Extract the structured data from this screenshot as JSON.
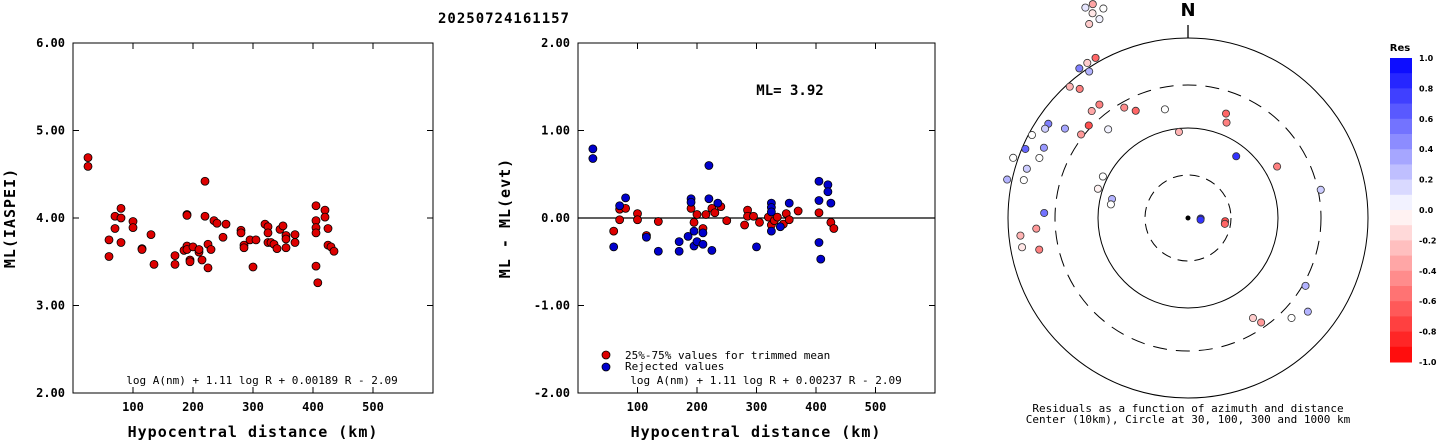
{
  "title": "20250724161157",
  "charts": {
    "left": {
      "type": "scatter",
      "xlabel": "Hypocentral distance (km)",
      "ylabel": "ML(IASPEI)",
      "xlim": [
        0,
        600
      ],
      "ylim": [
        2.0,
        6.0
      ],
      "xticks": [
        "100",
        "200",
        "300",
        "400",
        "500"
      ],
      "yticks": [
        "2.00",
        "3.00",
        "4.00",
        "5.00",
        "6.00"
      ],
      "formula": "log A(nm) + 1.11 log R + 0.00189 R - 2.09",
      "point_color": "#dd0000",
      "points": [
        [
          25,
          4.69
        ],
        [
          25,
          4.59
        ],
        [
          60,
          3.75
        ],
        [
          60,
          3.56
        ],
        [
          70,
          4.02
        ],
        [
          70,
          3.88
        ],
        [
          80,
          4.11
        ],
        [
          80,
          4.0
        ],
        [
          80,
          3.72
        ],
        [
          100,
          3.96
        ],
        [
          100,
          3.89
        ],
        [
          115,
          3.65
        ],
        [
          115,
          3.64
        ],
        [
          130,
          3.81
        ],
        [
          135,
          3.47
        ],
        [
          170,
          3.57
        ],
        [
          170,
          3.47
        ],
        [
          185,
          3.63
        ],
        [
          190,
          4.04
        ],
        [
          190,
          4.03
        ],
        [
          190,
          3.68
        ],
        [
          190,
          3.64
        ],
        [
          195,
          3.52
        ],
        [
          195,
          3.5
        ],
        [
          200,
          3.67
        ],
        [
          210,
          3.61
        ],
        [
          210,
          3.64
        ],
        [
          215,
          3.52
        ],
        [
          220,
          4.42
        ],
        [
          220,
          4.02
        ],
        [
          225,
          3.43
        ],
        [
          225,
          3.7
        ],
        [
          230,
          3.64
        ],
        [
          235,
          3.97
        ],
        [
          240,
          3.94
        ],
        [
          250,
          3.78
        ],
        [
          255,
          3.93
        ],
        [
          280,
          3.86
        ],
        [
          280,
          3.83
        ],
        [
          285,
          3.69
        ],
        [
          285,
          3.66
        ],
        [
          295,
          3.75
        ],
        [
          300,
          3.44
        ],
        [
          305,
          3.75
        ],
        [
          320,
          3.93
        ],
        [
          325,
          3.9
        ],
        [
          325,
          3.83
        ],
        [
          325,
          3.72
        ],
        [
          330,
          3.72
        ],
        [
          335,
          3.7
        ],
        [
          340,
          3.65
        ],
        [
          345,
          3.87
        ],
        [
          350,
          3.91
        ],
        [
          355,
          3.8
        ],
        [
          355,
          3.76
        ],
        [
          355,
          3.66
        ],
        [
          370,
          3.81
        ],
        [
          370,
          3.72
        ],
        [
          405,
          4.14
        ],
        [
          405,
          3.97
        ],
        [
          405,
          3.89
        ],
        [
          405,
          3.83
        ],
        [
          405,
          3.45
        ],
        [
          408,
          3.26
        ],
        [
          420,
          4.09
        ],
        [
          420,
          4.01
        ],
        [
          425,
          3.88
        ],
        [
          425,
          3.69
        ],
        [
          430,
          3.67
        ],
        [
          435,
          3.62
        ]
      ]
    },
    "middle": {
      "type": "scatter",
      "xlabel": "Hypocentral distance (km)",
      "ylabel": "ML - ML(evt)",
      "xlim": [
        0,
        600
      ],
      "ylim": [
        -2.0,
        2.0
      ],
      "xticks": [
        "100",
        "200",
        "300",
        "400",
        "500"
      ],
      "yticks": [
        "-2.00",
        "-1.00",
        "0.00",
        "1.00",
        "2.00"
      ],
      "ml_label": "ML= 3.92",
      "legend_trimmed": "25%-75% values for trimmed mean",
      "legend_rejected": "Rejected values",
      "formula": "log A(nm) + 1.11 log R + 0.00237 R - 2.09",
      "series": [
        {
          "color": "#dd0000",
          "points": [
            [
              60,
              -0.15
            ],
            [
              70,
              0.1
            ],
            [
              70,
              -0.02
            ],
            [
              80,
              0.11
            ],
            [
              100,
              0.05
            ],
            [
              100,
              -0.02
            ],
            [
              115,
              -0.2
            ],
            [
              135,
              -0.04
            ],
            [
              190,
              0.11
            ],
            [
              195,
              -0.05
            ],
            [
              200,
              0.04
            ],
            [
              210,
              -0.12
            ],
            [
              215,
              0.04
            ],
            [
              225,
              0.11
            ],
            [
              230,
              0.06
            ],
            [
              240,
              0.13
            ],
            [
              250,
              -0.03
            ],
            [
              280,
              -0.08
            ],
            [
              285,
              0.09
            ],
            [
              285,
              0.02
            ],
            [
              295,
              0.02
            ],
            [
              305,
              -0.05
            ],
            [
              320,
              0.01
            ],
            [
              325,
              -0.08
            ],
            [
              330,
              -0.03
            ],
            [
              335,
              0.01
            ],
            [
              345,
              -0.07
            ],
            [
              350,
              0.05
            ],
            [
              355,
              -0.02
            ],
            [
              370,
              0.08
            ],
            [
              405,
              0.06
            ],
            [
              425,
              -0.05
            ],
            [
              430,
              -0.12
            ]
          ]
        },
        {
          "color": "#0000cc",
          "points": [
            [
              25,
              0.79
            ],
            [
              25,
              0.68
            ],
            [
              60,
              -0.33
            ],
            [
              70,
              0.14
            ],
            [
              80,
              0.23
            ],
            [
              115,
              -0.22
            ],
            [
              135,
              -0.38
            ],
            [
              170,
              -0.27
            ],
            [
              170,
              -0.38
            ],
            [
              185,
              -0.21
            ],
            [
              190,
              0.22
            ],
            [
              190,
              0.18
            ],
            [
              195,
              -0.32
            ],
            [
              195,
              -0.15
            ],
            [
              200,
              -0.27
            ],
            [
              210,
              -0.17
            ],
            [
              210,
              -0.3
            ],
            [
              220,
              0.6
            ],
            [
              220,
              0.22
            ],
            [
              225,
              -0.37
            ],
            [
              235,
              0.17
            ],
            [
              300,
              -0.33
            ],
            [
              325,
              0.17
            ],
            [
              325,
              0.12
            ],
            [
              325,
              0.07
            ],
            [
              325,
              -0.15
            ],
            [
              340,
              -0.1
            ],
            [
              355,
              0.17
            ],
            [
              405,
              0.42
            ],
            [
              405,
              0.2
            ],
            [
              405,
              -0.28
            ],
            [
              408,
              -0.47
            ],
            [
              420,
              0.38
            ],
            [
              420,
              0.3
            ],
            [
              425,
              0.17
            ]
          ]
        }
      ]
    },
    "polar": {
      "north_label": "N",
      "caption_line1": "Residuals as a function of azimuth and distance",
      "caption_line2": "Center (10km), Circle at 30, 100, 300 and 1000 km",
      "colorbar_title": "Res",
      "colorbar_ticks": [
        "1.0",
        "0.8",
        "0.6",
        "0.4",
        "0.2",
        "0.0",
        "-0.2",
        "-0.4",
        "-0.6",
        "-0.8",
        "-1.0"
      ],
      "residuals": [
        {
          "az": 336,
          "d": 28,
          "r": -0.35
        },
        {
          "az": 335,
          "d": 27,
          "r": -0.1
        },
        {
          "az": 334,
          "d": 28,
          "r": 0.1
        },
        {
          "az": 336,
          "d": 26,
          "r": 0.05
        },
        {
          "az": 338,
          "d": 27,
          "r": 0.0
        },
        {
          "az": 333,
          "d": 26,
          "r": -0.2
        },
        {
          "az": 330,
          "d": 22,
          "r": -0.6
        },
        {
          "az": 327,
          "d": 22,
          "r": -0.2
        },
        {
          "az": 326,
          "d": 21,
          "r": 0.3
        },
        {
          "az": 324,
          "d": 22,
          "r": 0.5
        },
        {
          "az": 320,
          "d": 20,
          "r": -0.5
        },
        {
          "az": 318,
          "d": 21,
          "r": -0.3
        },
        {
          "az": 322,
          "d": 17,
          "r": -0.5
        },
        {
          "az": 318,
          "d": 17,
          "r": -0.35
        },
        {
          "az": 313,
          "d": 16,
          "r": -0.7
        },
        {
          "az": 308,
          "d": 16,
          "r": -0.4
        },
        {
          "az": 330,
          "d": 15,
          "r": -0.45
        },
        {
          "az": 334,
          "d": 14,
          "r": -0.6
        },
        {
          "az": 318,
          "d": 14,
          "r": 0.05
        },
        {
          "az": 306,
          "d": 18,
          "r": 0.35
        },
        {
          "az": 304,
          "d": 20,
          "r": 0.5
        },
        {
          "az": 302,
          "d": 20,
          "r": 0.2
        },
        {
          "az": 298,
          "d": 21,
          "r": 0.0
        },
        {
          "az": 296,
          "d": 19,
          "r": 0.4
        },
        {
          "az": 293,
          "d": 21,
          "r": 0.6
        },
        {
          "az": 292,
          "d": 19,
          "r": 0.0
        },
        {
          "az": 289,
          "d": 22,
          "r": 0.0
        },
        {
          "az": 287,
          "d": 20,
          "r": 0.2
        },
        {
          "az": 282,
          "d": 22,
          "r": 0.3
        },
        {
          "az": 283,
          "d": 20,
          "r": 0.0
        },
        {
          "az": 272,
          "d": 17,
          "r": 0.55
        },
        {
          "az": 266,
          "d": 18,
          "r": -0.4
        },
        {
          "az": 264,
          "d": 20,
          "r": -0.3
        },
        {
          "az": 260,
          "d": 20,
          "r": -0.1
        },
        {
          "az": 258,
          "d": 18,
          "r": -0.5
        },
        {
          "az": 296,
          "d": 11,
          "r": 0.0
        },
        {
          "az": 288,
          "d": 11,
          "r": -0.05
        },
        {
          "az": 284,
          "d": 9,
          "r": 0.3
        },
        {
          "az": 280,
          "d": 9,
          "r": 0.0
        },
        {
          "az": 348,
          "d": 13,
          "r": 0.0
        },
        {
          "az": 354,
          "d": 10,
          "r": -0.3
        },
        {
          "az": 20,
          "d": 13,
          "r": -0.6
        },
        {
          "az": 22,
          "d": 12,
          "r": -0.5
        },
        {
          "az": 38,
          "d": 9,
          "r": 0.8
        },
        {
          "az": 60,
          "d": 12,
          "r": -0.5
        },
        {
          "az": 78,
          "d": 16,
          "r": 0.2
        },
        {
          "az": 92,
          "d": 1,
          "r": 0.9
        },
        {
          "az": 98,
          "d": 1,
          "r": 0.8
        },
        {
          "az": 95,
          "d": 4,
          "r": -0.7
        },
        {
          "az": 99,
          "d": 4,
          "r": -0.6
        },
        {
          "az": 120,
          "d": 16,
          "r": 0.3
        },
        {
          "az": 128,
          "d": 18,
          "r": 0.3
        },
        {
          "az": 134,
          "d": 17,
          "r": 0.0
        },
        {
          "az": 145,
          "d": 15,
          "r": -0.4
        },
        {
          "az": 147,
          "d": 14,
          "r": -0.2
        }
      ]
    }
  }
}
